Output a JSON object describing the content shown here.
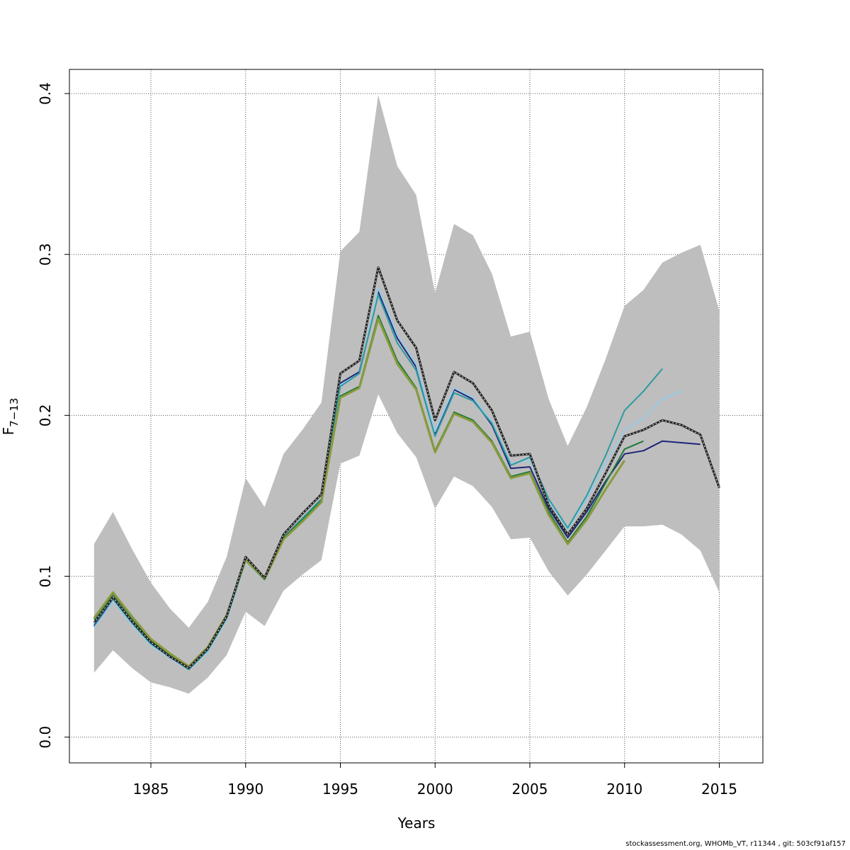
{
  "chart_data": {
    "type": "line",
    "xlabel": "Years",
    "ylabel": "F̄ 7−13",
    "ylabel_main": "F",
    "ylabel_sub": "7−13",
    "xlim": [
      1980.7,
      2017.3
    ],
    "ylim": [
      -0.016,
      0.415
    ],
    "x_ticks": [
      1985,
      1990,
      1995,
      2000,
      2005,
      2010,
      2015
    ],
    "y_ticks": [
      0.0,
      0.1,
      0.2,
      0.3,
      0.4
    ],
    "grid": true,
    "band": {
      "x": [
        1982,
        1983,
        1984,
        1985,
        1986,
        1987,
        1988,
        1989,
        1990,
        1991,
        1992,
        1993,
        1994,
        1995,
        1996,
        1997,
        1998,
        1999,
        2000,
        2001,
        2002,
        2003,
        2004,
        2005,
        2006,
        2007,
        2008,
        2009,
        2010,
        2011,
        2012,
        2013,
        2014,
        2015
      ],
      "upper": [
        0.12,
        0.14,
        0.117,
        0.096,
        0.08,
        0.068,
        0.084,
        0.112,
        0.161,
        0.143,
        0.176,
        0.191,
        0.208,
        0.302,
        0.314,
        0.399,
        0.355,
        0.337,
        0.276,
        0.319,
        0.312,
        0.288,
        0.249,
        0.252,
        0.21,
        0.181,
        0.205,
        0.235,
        0.268,
        0.278,
        0.295,
        0.301,
        0.306,
        0.265
      ],
      "lower": [
        0.04,
        0.054,
        0.043,
        0.034,
        0.031,
        0.027,
        0.037,
        0.051,
        0.078,
        0.069,
        0.091,
        0.101,
        0.11,
        0.17,
        0.175,
        0.213,
        0.189,
        0.174,
        0.142,
        0.162,
        0.156,
        0.143,
        0.123,
        0.124,
        0.103,
        0.088,
        0.101,
        0.116,
        0.131,
        0.131,
        0.132,
        0.126,
        0.116,
        0.09
      ],
      "color": "#bebebe"
    },
    "series": [
      {
        "color": "#1f2677",
        "width": 2,
        "x": [
          1982,
          1983,
          1984,
          1985,
          1986,
          1987,
          1988,
          1989,
          1990,
          1991,
          1992,
          1993,
          1994,
          1995,
          1996,
          1997,
          1998,
          1999,
          2000,
          2001,
          2002,
          2003,
          2004,
          2005,
          2006,
          2007,
          2008,
          2009,
          2010,
          2011,
          2012,
          2013,
          2014
        ],
        "y": [
          0.069,
          0.086,
          0.071,
          0.058,
          0.05,
          0.043,
          0.054,
          0.074,
          0.11,
          0.098,
          0.124,
          0.136,
          0.148,
          0.22,
          0.227,
          0.277,
          0.248,
          0.23,
          0.188,
          0.216,
          0.21,
          0.194,
          0.167,
          0.168,
          0.142,
          0.124,
          0.14,
          0.159,
          0.176,
          0.178,
          0.184,
          0.183,
          0.182
        ]
      },
      {
        "color": "#96cbe6",
        "width": 2,
        "x": [
          1982,
          1983,
          1984,
          1985,
          1986,
          1987,
          1988,
          1989,
          1990,
          1991,
          1992,
          1993,
          1994,
          1995,
          1996,
          1997,
          1998,
          1999,
          2000,
          2001,
          2002,
          2003,
          2004,
          2005,
          2006,
          2007,
          2008,
          2009,
          2010,
          2011,
          2012,
          2013
        ],
        "y": [
          0.068,
          0.084,
          0.07,
          0.057,
          0.049,
          0.042,
          0.053,
          0.073,
          0.109,
          0.097,
          0.123,
          0.135,
          0.147,
          0.219,
          0.226,
          0.279,
          0.25,
          0.232,
          0.19,
          0.217,
          0.211,
          0.196,
          0.17,
          0.172,
          0.147,
          0.129,
          0.148,
          0.17,
          0.191,
          0.198,
          0.21,
          0.215
        ]
      },
      {
        "color": "#2e9aa0",
        "width": 2,
        "x": [
          1982,
          1983,
          1984,
          1985,
          1986,
          1987,
          1988,
          1989,
          1990,
          1991,
          1992,
          1993,
          1994,
          1995,
          1996,
          1997,
          1998,
          1999,
          2000,
          2001,
          2002,
          2003,
          2004,
          2005,
          2006,
          2007,
          2008,
          2009,
          2010,
          2011,
          2012
        ],
        "y": [
          0.07,
          0.086,
          0.071,
          0.058,
          0.05,
          0.042,
          0.054,
          0.074,
          0.11,
          0.098,
          0.124,
          0.136,
          0.148,
          0.218,
          0.226,
          0.275,
          0.245,
          0.228,
          0.187,
          0.214,
          0.209,
          0.195,
          0.169,
          0.174,
          0.148,
          0.13,
          0.15,
          0.175,
          0.203,
          0.215,
          0.229
        ]
      },
      {
        "color": "#1c7a3a",
        "width": 2,
        "x": [
          1982,
          1983,
          1984,
          1985,
          1986,
          1987,
          1988,
          1989,
          1990,
          1991,
          1992,
          1993,
          1994,
          1995,
          1996,
          1997,
          1998,
          1999,
          2000,
          2001,
          2002,
          2003,
          2004,
          2005,
          2006,
          2007,
          2008,
          2009,
          2010,
          2011
        ],
        "y": [
          0.073,
          0.089,
          0.074,
          0.06,
          0.051,
          0.044,
          0.056,
          0.075,
          0.11,
          0.098,
          0.124,
          0.135,
          0.147,
          0.212,
          0.218,
          0.262,
          0.234,
          0.217,
          0.178,
          0.202,
          0.197,
          0.184,
          0.162,
          0.165,
          0.14,
          0.121,
          0.137,
          0.158,
          0.179,
          0.184
        ]
      },
      {
        "color": "#8a9a3c",
        "width": 3,
        "x": [
          1982,
          1983,
          1984,
          1985,
          1986,
          1987,
          1988,
          1989,
          1990,
          1991,
          1992,
          1993,
          1994,
          1995,
          1996,
          1997,
          1998,
          1999,
          2000,
          2001,
          2002,
          2003,
          2004,
          2005,
          2006,
          2007,
          2008,
          2009,
          2010
        ],
        "y": [
          0.074,
          0.09,
          0.075,
          0.061,
          0.052,
          0.044,
          0.056,
          0.076,
          0.11,
          0.098,
          0.123,
          0.134,
          0.146,
          0.211,
          0.217,
          0.26,
          0.232,
          0.216,
          0.177,
          0.201,
          0.196,
          0.183,
          0.161,
          0.164,
          0.138,
          0.12,
          0.135,
          0.154,
          0.172
        ]
      }
    ],
    "estimate": {
      "x": [
        1982,
        1983,
        1984,
        1985,
        1986,
        1987,
        1988,
        1989,
        1990,
        1991,
        1992,
        1993,
        1994,
        1995,
        1996,
        1997,
        1998,
        1999,
        2000,
        2001,
        2002,
        2003,
        2004,
        2005,
        2006,
        2007,
        2008,
        2009,
        2010,
        2011,
        2012,
        2013,
        2014,
        2015
      ],
      "y": [
        0.071,
        0.087,
        0.072,
        0.059,
        0.05,
        0.043,
        0.055,
        0.075,
        0.112,
        0.099,
        0.126,
        0.139,
        0.151,
        0.226,
        0.234,
        0.292,
        0.259,
        0.242,
        0.197,
        0.227,
        0.22,
        0.203,
        0.175,
        0.176,
        0.144,
        0.126,
        0.142,
        0.164,
        0.187,
        0.191,
        0.197,
        0.194,
        0.188,
        0.155
      ],
      "color": "#222222"
    }
  },
  "footer": "stockassessment.org, WHOMb_VT, r11344 , git: 503cf91af157"
}
